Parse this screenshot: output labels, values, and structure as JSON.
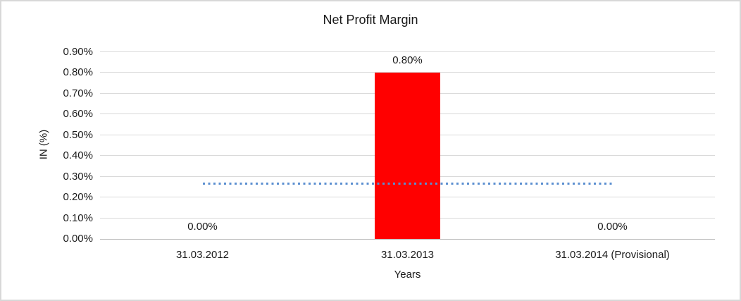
{
  "chart_data": {
    "type": "bar",
    "title": "Net Profit Margin",
    "xlabel": "Years",
    "ylabel": "IN (%)",
    "categories": [
      "31.03.2012",
      "31.03.2013",
      "31.03.2014 (Provisional)"
    ],
    "values": [
      0.0,
      0.8,
      0.0
    ],
    "data_labels": [
      "0.00%",
      "0.80%",
      "0.00%"
    ],
    "ylim": [
      0,
      0.9
    ],
    "ytick_step": 0.1,
    "ytick_labels": [
      "0.00%",
      "0.10%",
      "0.20%",
      "0.30%",
      "0.40%",
      "0.50%",
      "0.60%",
      "0.70%",
      "0.80%",
      "0.90%"
    ],
    "grid": true,
    "legend": "none",
    "bar_color": "#ff0000",
    "gridline_color": "#d9d9d9",
    "axis_line_color": "#bfbfbf",
    "text_color": "#1a1a1a",
    "frame_border_color": "#d8d8d8",
    "trendline": {
      "style": "dotted",
      "color": "#5b8fd0",
      "value": 0.267,
      "start_category_index": 0,
      "end_category_index": 2
    }
  }
}
